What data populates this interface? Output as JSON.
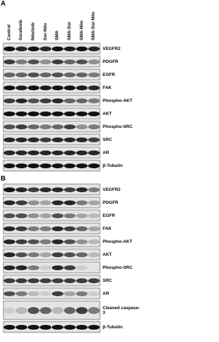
{
  "panels": [
    {
      "label": "A",
      "columns": [
        "Control",
        "Sorafenib",
        "Nilotinib",
        "Sor-Nilo",
        "SMA",
        "SMA-Sor",
        "SMA-Nilo",
        "SMA-Sor-Nilo"
      ],
      "rows": [
        "VEGFR2",
        "PDGFR",
        "EGFR",
        "FAK",
        "Phospho-AKT",
        "AKT",
        "Phospho-SRC",
        "SRC",
        "AR",
        "β-Tubulin"
      ]
    },
    {
      "label": "B",
      "rows": [
        "VEGFR2",
        "PDGFR",
        "EGFR",
        "FAK",
        "Phospho-AKT",
        "AKT",
        "Phospho-SRC",
        "SRC",
        "AR",
        "Cleaved caspase-3",
        "β-Tubulin"
      ]
    }
  ]
}
